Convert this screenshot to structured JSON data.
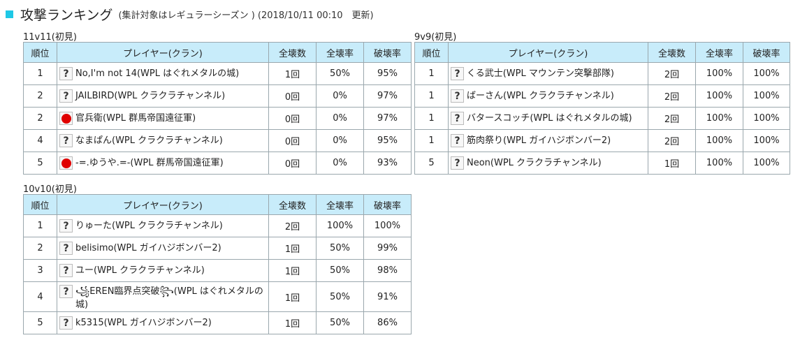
{
  "header": {
    "title": "攻撃ランキング",
    "subtitle": "(集計対象はレギュラーシーズン ) (2018/10/11 00:10　更新)"
  },
  "columns": {
    "rank": "順位",
    "player": "プレイヤー(クラン)",
    "total": "全壊数",
    "full_rate": "全壊率",
    "destroy_rate": "破壊率"
  },
  "sections": [
    {
      "label": "11v11(初見)",
      "rows": [
        {
          "rank": "1",
          "icon": "question-icon",
          "player": "No,I'm not 14(WPL はぐれメタルの城)",
          "total": "1回",
          "full_rate": "50%",
          "destroy_rate": "95%"
        },
        {
          "rank": "2",
          "icon": "question-icon",
          "player": "JAILBIRD(WPL クラクラチャンネル)",
          "total": "0回",
          "full_rate": "0%",
          "destroy_rate": "97%"
        },
        {
          "rank": "2",
          "icon": "red-circle-icon",
          "player": "官兵衛(WPL 群馬帝国遠征軍)",
          "total": "0回",
          "full_rate": "0%",
          "destroy_rate": "97%"
        },
        {
          "rank": "4",
          "icon": "question-icon",
          "player": "なまぱん(WPL クラクラチャンネル)",
          "total": "0回",
          "full_rate": "0%",
          "destroy_rate": "95%"
        },
        {
          "rank": "5",
          "icon": "red-circle-icon",
          "player": "-=.ゆうや.=-(WPL 群馬帝国遠征軍)",
          "total": "0回",
          "full_rate": "0%",
          "destroy_rate": "93%"
        }
      ]
    },
    {
      "label": "9v9(初見)",
      "rows": [
        {
          "rank": "1",
          "icon": "question-icon",
          "player": "くる武士(WPL マウンテン突撃部隊)",
          "total": "2回",
          "full_rate": "100%",
          "destroy_rate": "100%"
        },
        {
          "rank": "1",
          "icon": "question-icon",
          "player": "ばーさん(WPL クラクラチャンネル)",
          "total": "2回",
          "full_rate": "100%",
          "destroy_rate": "100%"
        },
        {
          "rank": "1",
          "icon": "question-icon",
          "player": "バタースコッチ(WPL はぐれメタルの城)",
          "total": "2回",
          "full_rate": "100%",
          "destroy_rate": "100%"
        },
        {
          "rank": "1",
          "icon": "question-icon",
          "player": "筋肉祭り(WPL ガイハジボンバー2)",
          "total": "2回",
          "full_rate": "100%",
          "destroy_rate": "100%"
        },
        {
          "rank": "5",
          "icon": "question-icon",
          "player": "Neon(WPL クラクラチャンネル)",
          "total": "1回",
          "full_rate": "100%",
          "destroy_rate": "100%"
        }
      ]
    },
    {
      "label": "10v10(初見)",
      "rows": [
        {
          "rank": "1",
          "icon": "question-icon",
          "player": "りゅーた(WPL クラクラチャンネル)",
          "total": "2回",
          "full_rate": "100%",
          "destroy_rate": "100%"
        },
        {
          "rank": "2",
          "icon": "question-icon",
          "player": "belisimo(WPL ガイハジボンバー2)",
          "total": "1回",
          "full_rate": "50%",
          "destroy_rate": "99%"
        },
        {
          "rank": "3",
          "icon": "question-icon",
          "player": "ユー(WPL クラクラチャンネル)",
          "total": "1回",
          "full_rate": "50%",
          "destroy_rate": "98%"
        },
        {
          "rank": "4",
          "icon": "question-icon",
          "player": "꧁EREN臨界点突破꧂(WPL はぐれメタルの城)",
          "total": "1回",
          "full_rate": "50%",
          "destroy_rate": "91%"
        },
        {
          "rank": "5",
          "icon": "question-icon",
          "player": "k5315(WPL ガイハジボンバー2)",
          "total": "1回",
          "full_rate": "50%",
          "destroy_rate": "86%"
        }
      ]
    }
  ]
}
